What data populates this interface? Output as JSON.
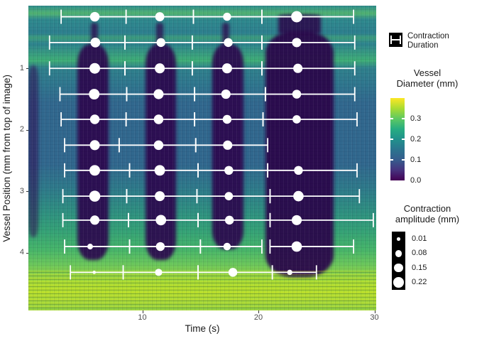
{
  "chart_data": {
    "type": "heatmap",
    "title": "",
    "xlabel": "Time (s)",
    "ylabel": "Vessel Position (mm from top of image)",
    "x_ticks": [
      10,
      20,
      30
    ],
    "y_ticks": [
      1,
      2,
      3,
      4
    ],
    "axes": {
      "x_min": 0.18,
      "x_max": 30.15,
      "y_min": -0.02,
      "y_max": 4.94,
      "y_inverted": true
    },
    "fill_legend": {
      "title_line1": "Vessel",
      "title_line2": "Diameter (mm)",
      "tick_values": [
        0.3,
        0.2,
        0.1,
        0.0
      ],
      "tick_labels": [
        "0.3",
        "0.2",
        "0.1",
        "0.0"
      ],
      "bar_min": 0.0,
      "bar_max": 0.4,
      "viridis_stops": [
        "#440154",
        "#46327e",
        "#365c8d",
        "#2b748e",
        "#21918c",
        "#27ad81",
        "#5ec962",
        "#aadc32",
        "#fde725"
      ]
    },
    "size_legend": {
      "title_line1": "Contraction",
      "title_line2": "amplitude (mm)",
      "values": [
        0.01,
        0.08,
        0.15,
        0.22
      ],
      "labels": [
        "0.01",
        "0.08",
        "0.15",
        "0.22"
      ]
    },
    "duration_legend": {
      "line1": "Contraction",
      "line2": "Duration"
    },
    "point_color": "#ffffff",
    "size_rule": {
      "base": 2,
      "scale": 27
    },
    "heat_strata": [
      [
        0,
        "#2f8c8c"
      ],
      [
        2.5,
        "#52b573"
      ],
      [
        4.5,
        "#2f8a8e"
      ],
      [
        9,
        "#2d808e"
      ],
      [
        10.5,
        "#3d9d7e"
      ],
      [
        12.5,
        "#2d838e"
      ],
      [
        18,
        "#3fae77"
      ],
      [
        20.5,
        "#2f818c"
      ],
      [
        26,
        "#2f768e"
      ],
      [
        32,
        "#31688e"
      ],
      [
        52,
        "#31688e"
      ],
      [
        60,
        "#2e7a8a"
      ],
      [
        68,
        "#2f9180"
      ],
      [
        74,
        "#35a276"
      ],
      [
        80,
        "#46b56a"
      ],
      [
        85,
        "#6cc75b"
      ],
      [
        88.5,
        "#93d345"
      ],
      [
        91,
        "#aadb35"
      ],
      [
        94,
        "#b5de2f"
      ],
      [
        97,
        "#a8d93a"
      ],
      [
        100,
        "#8fcf45"
      ]
    ],
    "contraction_bands": [
      {
        "t0": 0.18,
        "t1": 1.05,
        "p0": 0.95,
        "p1": 3.75,
        "color": "rgba(48,12,84,0.55)"
      },
      {
        "t0": 4.4,
        "t1": 7.1,
        "p0": 0.6,
        "p1": 4.12,
        "color": "rgba(45,8,78,0.92)"
      },
      {
        "t0": 5.55,
        "t1": 6.15,
        "p0": 0.26,
        "p1": 0.64,
        "color": "rgba(45,8,78,0.75)"
      },
      {
        "t0": 10.3,
        "t1": 12.9,
        "p0": 0.6,
        "p1": 4.12,
        "color": "rgba(45,8,78,0.92)"
      },
      {
        "t0": 11.2,
        "t1": 11.8,
        "p0": 0.26,
        "p1": 0.64,
        "color": "rgba(45,8,78,0.75)"
      },
      {
        "t0": 16.0,
        "t1": 18.7,
        "p0": 0.6,
        "p1": 3.95,
        "color": "rgba(45,8,78,0.92)"
      },
      {
        "t0": 16.9,
        "t1": 17.5,
        "p0": 0.26,
        "p1": 0.64,
        "color": "rgba(45,8,78,0.75)"
      },
      {
        "t0": 20.6,
        "t1": 26.5,
        "p0": 0.4,
        "p1": 4.4,
        "color": "rgba(42,6,74,0.94)"
      },
      {
        "t0": 21.7,
        "t1": 25.4,
        "p0": 0.12,
        "p1": 0.45,
        "color": "rgba(42,6,74,0.85)"
      }
    ],
    "points": [
      {
        "t": 5.9,
        "pos": 0.16,
        "amp": 0.18,
        "lo": 3.0,
        "hi": 8.6
      },
      {
        "t": 11.5,
        "pos": 0.16,
        "amp": 0.16,
        "lo": 8.6,
        "hi": 14.4
      },
      {
        "t": 17.3,
        "pos": 0.16,
        "amp": 0.12,
        "lo": 14.4,
        "hi": 20.3
      },
      {
        "t": 23.3,
        "pos": 0.16,
        "amp": 0.26,
        "lo": 20.3,
        "hi": 28.2
      },
      {
        "t": 5.95,
        "pos": 0.58,
        "amp": 0.19,
        "lo": 2.0,
        "hi": 8.5
      },
      {
        "t": 11.6,
        "pos": 0.58,
        "amp": 0.15,
        "lo": 8.5,
        "hi": 14.3
      },
      {
        "t": 17.4,
        "pos": 0.58,
        "amp": 0.15,
        "lo": 14.3,
        "hi": 20.3
      },
      {
        "t": 23.3,
        "pos": 0.58,
        "amp": 0.17,
        "lo": 20.3,
        "hi": 28.3
      },
      {
        "t": 5.9,
        "pos": 1.0,
        "amp": 0.23,
        "lo": 2.0,
        "hi": 8.5
      },
      {
        "t": 11.5,
        "pos": 1.0,
        "amp": 0.2,
        "lo": 8.5,
        "hi": 14.3
      },
      {
        "t": 17.3,
        "pos": 1.0,
        "amp": 0.2,
        "lo": 14.3,
        "hi": 20.3
      },
      {
        "t": 23.4,
        "pos": 1.0,
        "amp": 0.17,
        "lo": 20.3,
        "hi": 28.3
      },
      {
        "t": 5.85,
        "pos": 1.42,
        "amp": 0.23,
        "lo": 2.9,
        "hi": 8.65
      },
      {
        "t": 11.4,
        "pos": 1.42,
        "amp": 0.2,
        "lo": 8.65,
        "hi": 14.5
      },
      {
        "t": 17.2,
        "pos": 1.42,
        "amp": 0.17,
        "lo": 14.5,
        "hi": 20.6
      },
      {
        "t": 23.3,
        "pos": 1.42,
        "amp": 0.15,
        "lo": 20.6,
        "hi": 28.3
      },
      {
        "t": 5.9,
        "pos": 1.83,
        "amp": 0.18,
        "lo": 3.0,
        "hi": 8.6
      },
      {
        "t": 11.4,
        "pos": 1.83,
        "amp": 0.18,
        "lo": 8.6,
        "hi": 14.5
      },
      {
        "t": 17.3,
        "pos": 1.83,
        "amp": 0.15,
        "lo": 14.5,
        "hi": 20.4
      },
      {
        "t": 23.3,
        "pos": 1.83,
        "amp": 0.13,
        "lo": 20.4,
        "hi": 28.5
      },
      {
        "t": 5.9,
        "pos": 2.25,
        "amp": 0.2,
        "lo": 3.3,
        "hi": 8.0
      },
      {
        "t": 11.4,
        "pos": 2.25,
        "amp": 0.18,
        "lo": 8.0,
        "hi": 14.6
      },
      {
        "t": 17.35,
        "pos": 2.25,
        "amp": 0.17,
        "lo": 14.6,
        "hi": 20.8
      },
      {
        "t": 5.9,
        "pos": 2.66,
        "amp": 0.23,
        "lo": 3.3,
        "hi": 8.9
      },
      {
        "t": 11.5,
        "pos": 2.66,
        "amp": 0.23,
        "lo": 8.9,
        "hi": 14.8
      },
      {
        "t": 17.45,
        "pos": 2.66,
        "amp": 0.15,
        "lo": 14.8,
        "hi": 20.8
      },
      {
        "t": 23.45,
        "pos": 2.66,
        "amp": 0.15,
        "lo": 20.8,
        "hi": 28.5
      },
      {
        "t": 5.9,
        "pos": 3.08,
        "amp": 0.25,
        "lo": 3.15,
        "hi": 8.65
      },
      {
        "t": 11.5,
        "pos": 3.08,
        "amp": 0.2,
        "lo": 8.65,
        "hi": 14.7
      },
      {
        "t": 17.45,
        "pos": 3.08,
        "amp": 0.13,
        "lo": 14.7,
        "hi": 21.0
      },
      {
        "t": 23.45,
        "pos": 3.08,
        "amp": 0.22,
        "lo": 21.0,
        "hi": 28.7
      },
      {
        "t": 5.9,
        "pos": 3.47,
        "amp": 0.17,
        "lo": 3.15,
        "hi": 8.8
      },
      {
        "t": 11.6,
        "pos": 3.47,
        "amp": 0.22,
        "lo": 8.8,
        "hi": 14.8
      },
      {
        "t": 17.5,
        "pos": 3.47,
        "amp": 0.15,
        "lo": 14.8,
        "hi": 21.0
      },
      {
        "t": 23.3,
        "pos": 3.47,
        "amp": 0.2,
        "lo": 21.0,
        "hi": 29.9
      },
      {
        "t": 5.5,
        "pos": 3.9,
        "amp": 0.05,
        "lo": 3.3,
        "hi": 8.9
      },
      {
        "t": 11.55,
        "pos": 3.9,
        "amp": 0.15,
        "lo": 8.9,
        "hi": 15.0
      },
      {
        "t": 17.3,
        "pos": 3.9,
        "amp": 0.1,
        "lo": 15.0,
        "hi": 20.3
      },
      {
        "t": 23.3,
        "pos": 3.9,
        "amp": 0.22,
        "lo": 21.0,
        "hi": 28.2
      },
      {
        "t": 5.85,
        "pos": 4.32,
        "amp": 0.01,
        "lo": 3.8,
        "hi": 8.35
      },
      {
        "t": 11.4,
        "pos": 4.32,
        "amp": 0.09,
        "lo": 8.35,
        "hi": 14.8
      },
      {
        "t": 17.8,
        "pos": 4.32,
        "amp": 0.15,
        "lo": 14.8,
        "hi": 21.2
      },
      {
        "t": 22.7,
        "pos": 4.32,
        "amp": 0.04,
        "lo": 21.2,
        "hi": 25.0
      }
    ]
  }
}
